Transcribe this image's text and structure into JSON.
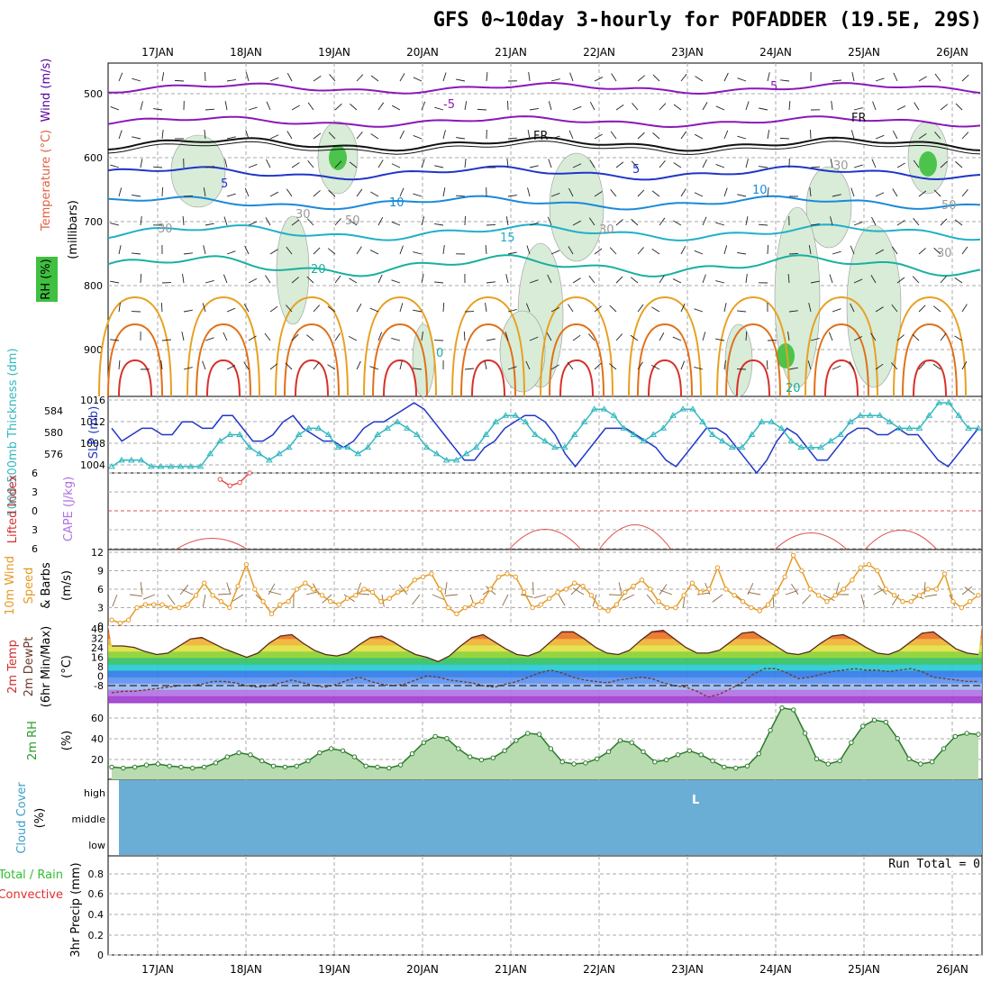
{
  "header": {
    "title": "GFS 0~10day 3-hourly for POFADDER (19.5E, 29S)"
  },
  "dates": [
    "17JAN",
    "18JAN",
    "19JAN",
    "20JAN",
    "21JAN",
    "22JAN",
    "23JAN",
    "24JAN",
    "25JAN",
    "26JAN"
  ],
  "precip_panel": {
    "run_total": "Run Total = 0"
  },
  "colors": {
    "temp_red": "#e23a2e",
    "dewpt_dark": "#6e3a2a",
    "rh_green": "#2a9a2a",
    "cloud_blue": "#6aaed6",
    "slp_blue": "#1f36c8",
    "thick_cyan": "#33b8c0",
    "wind_orange": "#e69a22",
    "grid": "#aaaaaa"
  },
  "panels": {
    "upper": {
      "y_labels": [
        "Wind (m/s)",
        "Temperature (°C)",
        "RH (%)"
      ],
      "axis_label": "(millibars)",
      "ticks": [
        "500",
        "600",
        "700",
        "800",
        "900"
      ],
      "contour_labels": [
        "5",
        "-5",
        "FR",
        "FR",
        "5",
        "5",
        "10",
        "10",
        "15",
        "20",
        "20",
        "0",
        "30",
        "30",
        "30",
        "30",
        "50",
        "50",
        "30"
      ]
    },
    "slp": {
      "left_label": "1000-500mb Thickness (dm)",
      "right_label": "SLP (mb)",
      "left_ticks": [
        "584",
        "580",
        "576"
      ],
      "right_ticks": [
        "1016",
        "1012",
        "1008",
        "1004"
      ]
    },
    "cape": {
      "labels": [
        "Lifted Index",
        "CAPE (J/kg)"
      ],
      "ticks": [
        "6",
        "3",
        "0",
        "3",
        "6"
      ]
    },
    "wind10": {
      "labels": [
        "10m Wind",
        "Speed",
        "& Barbs",
        "(m/s)"
      ],
      "ticks": [
        "12",
        "9",
        "6",
        "3",
        "0"
      ]
    },
    "temp2m": {
      "labels": [
        "2m Temp",
        "2m DewPt",
        "(6hr Min/Max)",
        "(°C)"
      ],
      "ticks": [
        "40",
        "32",
        "24",
        "16",
        "8",
        "0",
        "-8"
      ]
    },
    "rh2m": {
      "labels": [
        "2m RH",
        "(%)"
      ],
      "ticks": [
        "60",
        "40",
        "20"
      ]
    },
    "cloud": {
      "labels": [
        "Cloud Cover",
        "(%)"
      ],
      "ticks": [
        "high",
        "middle",
        "low"
      ],
      "marker": "L"
    },
    "precip": {
      "labels": [
        "Total / Rain",
        "Convective",
        "3hr Precip (mm)"
      ],
      "ticks": [
        "0.8",
        "0.6",
        "0.4",
        "0.2",
        "0"
      ]
    }
  },
  "chart_data": [
    {
      "type": "line",
      "name": "SLP (mb)",
      "ylim": [
        1004,
        1016
      ],
      "values": [
        1011,
        1009,
        1010,
        1011,
        1011,
        1010,
        1010,
        1012,
        1012,
        1011,
        1011,
        1013,
        1013,
        1011,
        1009,
        1009,
        1010,
        1012,
        1013,
        1011,
        1010,
        1009,
        1009,
        1008,
        1009,
        1011,
        1012,
        1012,
        1013,
        1014,
        1015,
        1014,
        1012,
        1010,
        1008,
        1006,
        1006,
        1008,
        1009,
        1011,
        1012,
        1013,
        1013,
        1012,
        1010,
        1007,
        1005,
        1007,
        1009,
        1011,
        1011,
        1011,
        1010,
        1009,
        1008,
        1006,
        1005,
        1007,
        1009,
        1011,
        1011,
        1010,
        1008,
        1006,
        1004,
        1006,
        1009,
        1011,
        1010,
        1008,
        1006,
        1006,
        1008,
        1010,
        1011,
        1011,
        1010,
        1010,
        1011,
        1010,
        1010,
        1008,
        1006,
        1005,
        1007,
        1009,
        1011
      ]
    },
    {
      "type": "line",
      "name": "1000-500mb Thickness (dm)",
      "ylim": [
        574,
        586
      ],
      "values": [
        575,
        576,
        576,
        576,
        575,
        575,
        575,
        575,
        575,
        575,
        577,
        579,
        580,
        580,
        578,
        577,
        576,
        577,
        578,
        580,
        581,
        581,
        580,
        578,
        578,
        577,
        578,
        580,
        581,
        582,
        581,
        580,
        578,
        577,
        576,
        576,
        577,
        578,
        580,
        582,
        583,
        583,
        582,
        580,
        579,
        578,
        578,
        580,
        582,
        584,
        584,
        583,
        581,
        580,
        579,
        580,
        581,
        583,
        584,
        584,
        582,
        580,
        579,
        578,
        578,
        580,
        582,
        582,
        581,
        579,
        578,
        578,
        578,
        579,
        580,
        582,
        583,
        583,
        583,
        582,
        581,
        581,
        581,
        583,
        585,
        585,
        583,
        581,
        581
      ]
    },
    {
      "type": "line",
      "name": "Lifted Index",
      "ylim": [
        -6,
        6
      ],
      "values": [
        null,
        null,
        null,
        null,
        null,
        null,
        null,
        null,
        null,
        null,
        null,
        5,
        4,
        4.5,
        6,
        null,
        null,
        null,
        null,
        null,
        null,
        null,
        null,
        null,
        null,
        null,
        null,
        null,
        null,
        null,
        null,
        null,
        null,
        null,
        null,
        null,
        null,
        null,
        null,
        null,
        null,
        null,
        null,
        null,
        null,
        null,
        null,
        null,
        null,
        null,
        null,
        null,
        null,
        null,
        null,
        null,
        null,
        null,
        null,
        null,
        null,
        null,
        null,
        null,
        null,
        null,
        null,
        null,
        null,
        null,
        null,
        null,
        null,
        null,
        null,
        null,
        null,
        null,
        null,
        null,
        null,
        null,
        null,
        null,
        null,
        null,
        null,
        null,
        null
      ]
    },
    {
      "type": "line",
      "name": "10m Wind Speed (m/s)",
      "ylim": [
        0,
        12
      ],
      "values": [
        1,
        0.5,
        1,
        3,
        3.5,
        3.5,
        3.5,
        3,
        3,
        3.5,
        5,
        7,
        5,
        4,
        3,
        6.5,
        10,
        6,
        4,
        2,
        3.5,
        4,
        6,
        7,
        6,
        5,
        4,
        3.5,
        4.5,
        5,
        6,
        5.5,
        4,
        4.5,
        5.5,
        6,
        7.5,
        8,
        8.5,
        6,
        3,
        2,
        3,
        3.5,
        4,
        6,
        8,
        8.5,
        8,
        5.5,
        3,
        3.5,
        4.5,
        5.5,
        6,
        7,
        6.5,
        5,
        3,
        2.5,
        3.5,
        5.5,
        6.5,
        7.5,
        6,
        4,
        3,
        3,
        5,
        7,
        5.5,
        6,
        9.5,
        6,
        5,
        4,
        3,
        2.5,
        3.5,
        5.5,
        8,
        11.5,
        9,
        6,
        5,
        4,
        5,
        6,
        7.5,
        9.5,
        10,
        9,
        6,
        5,
        4,
        4,
        5,
        6,
        6,
        8.5,
        4,
        3,
        4,
        5
      ]
    },
    {
      "type": "area",
      "name": "2m Temp (°C)",
      "ylim": [
        -12,
        42
      ],
      "values": [
        28,
        28,
        27,
        24,
        22,
        23,
        28,
        33,
        34,
        30,
        26,
        23,
        20,
        23,
        30,
        35,
        36,
        30,
        25,
        22,
        21,
        23,
        29,
        34,
        35,
        31,
        26,
        22,
        20,
        17,
        21,
        28,
        34,
        36,
        31,
        26,
        22,
        21,
        24,
        31,
        38,
        38,
        33,
        27,
        23,
        22,
        25,
        32,
        38,
        39,
        33,
        27,
        23,
        23,
        25,
        31,
        37,
        38,
        33,
        28,
        23,
        22,
        24,
        30,
        35,
        36,
        32,
        27,
        23,
        22,
        25,
        31,
        37,
        38,
        32,
        26,
        23,
        22
      ]
    },
    {
      "type": "line",
      "name": "2m DewPt (°C)",
      "ylim": [
        -12,
        42
      ],
      "values": [
        -5,
        -4,
        -4,
        -3,
        -2,
        -1,
        0,
        0,
        1,
        3,
        3,
        2,
        0,
        -1,
        0,
        2,
        4,
        2,
        0,
        -1,
        1,
        4,
        6,
        3,
        1,
        0,
        1,
        4,
        7,
        6,
        4,
        3,
        2,
        0,
        -1,
        1,
        3,
        6,
        9,
        11,
        9,
        6,
        4,
        3,
        2,
        4,
        5,
        6,
        5,
        2,
        0,
        -1,
        -4,
        -8,
        -6,
        -2,
        2,
        8,
        12,
        12,
        9,
        5,
        6,
        8,
        10,
        11,
        12,
        11,
        11,
        10,
        11,
        12,
        10,
        6,
        5,
        4,
        3,
        3
      ]
    },
    {
      "type": "area",
      "name": "2m RH (%)",
      "ylim": [
        0,
        75
      ],
      "values": [
        12,
        11,
        12,
        14,
        15,
        13,
        12,
        11,
        12,
        16,
        22,
        26,
        24,
        18,
        13,
        12,
        13,
        18,
        26,
        30,
        28,
        22,
        13,
        12,
        11,
        14,
        25,
        36,
        42,
        40,
        30,
        22,
        19,
        21,
        28,
        38,
        45,
        44,
        30,
        17,
        15,
        16,
        20,
        27,
        38,
        36,
        27,
        17,
        19,
        24,
        28,
        24,
        18,
        12,
        11,
        13,
        25,
        48,
        70,
        68,
        45,
        20,
        15,
        18,
        36,
        52,
        58,
        56,
        40,
        20,
        15,
        17,
        30,
        42,
        45,
        44
      ]
    },
    {
      "type": "bar",
      "name": "3hr Precip (mm)",
      "ylim": [
        0,
        1
      ],
      "values": [
        0,
        0,
        0,
        0,
        0,
        0,
        0,
        0,
        0,
        0
      ]
    }
  ]
}
